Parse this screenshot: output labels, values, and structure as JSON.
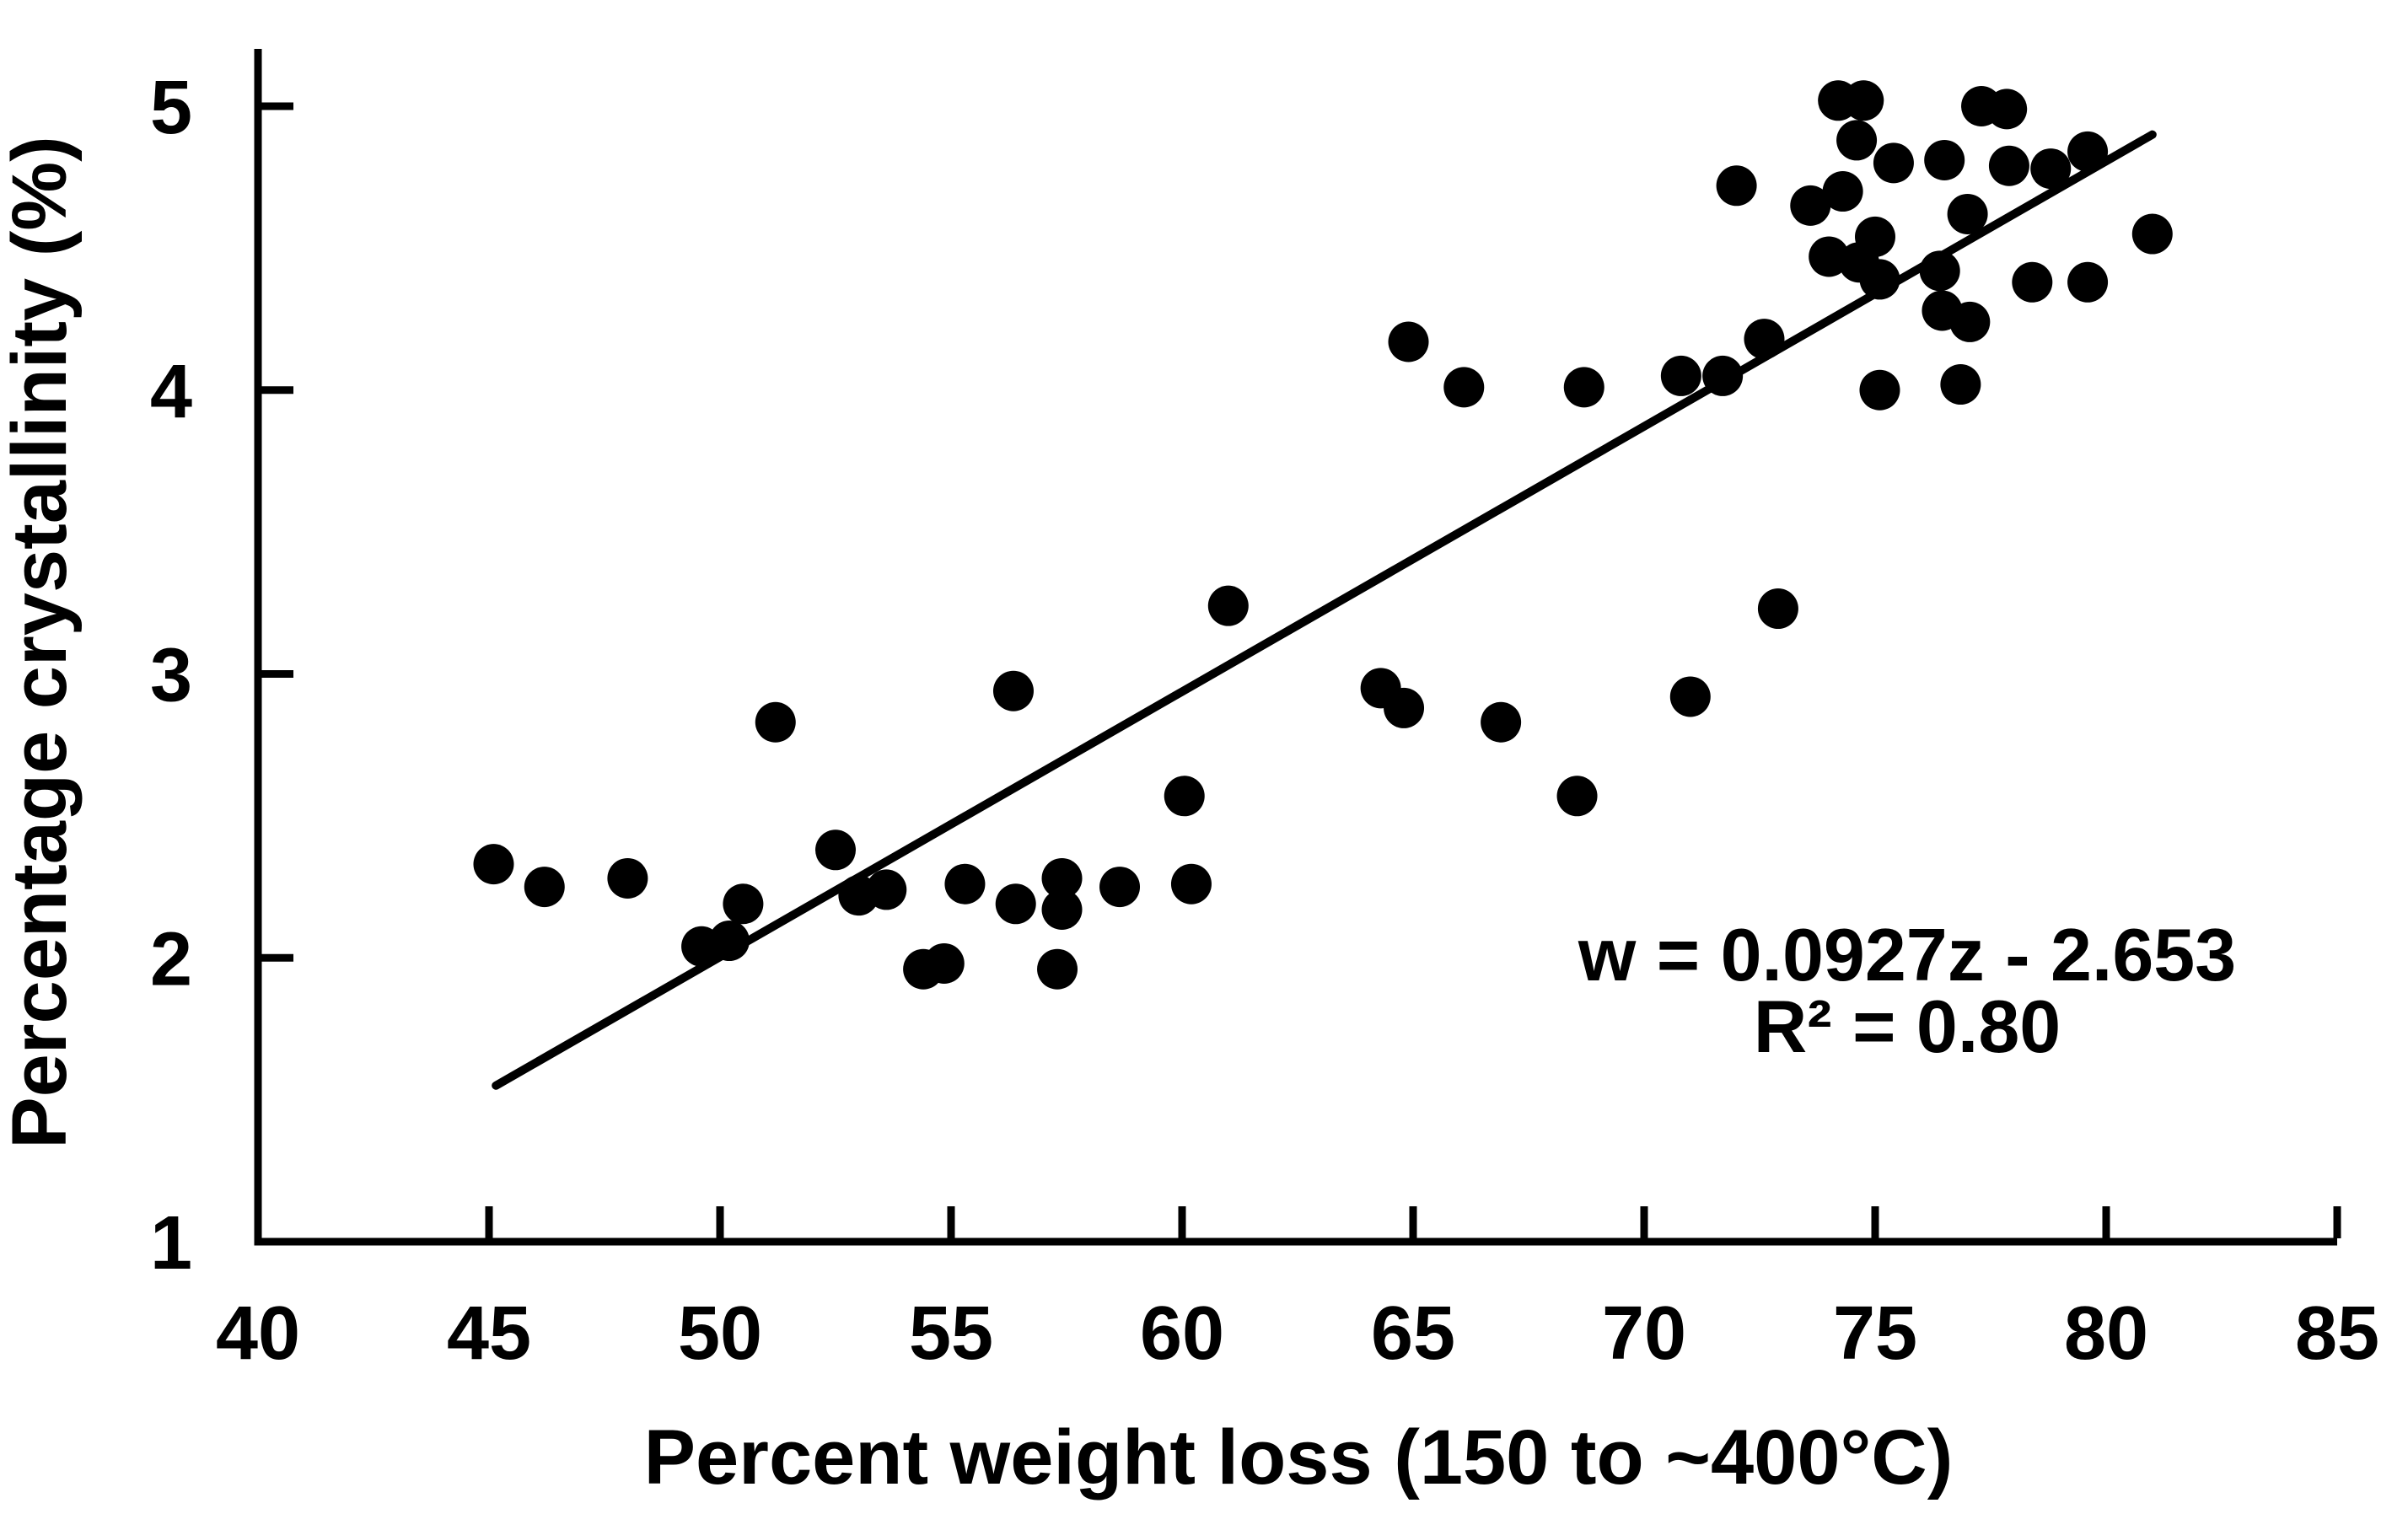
{
  "figure": {
    "background": "#ffffff",
    "foreground": "#000000"
  },
  "chart_data": {
    "type": "scatter",
    "title": "",
    "xlabel": "Percent weight loss (150 to ~400°C)",
    "ylabel": "Percentage crystallinity (%)",
    "xlim": [
      40,
      85
    ],
    "ylim": [
      1,
      5.2
    ],
    "grid": false,
    "legend": false,
    "marker_color": "#000000",
    "x_tick_labels": [
      "40",
      "45",
      "50",
      "55",
      "60",
      "65",
      "70",
      "75",
      "80",
      "85"
    ],
    "x_tick_values": [
      40,
      45,
      50,
      55,
      60,
      65,
      70,
      75,
      80,
      85
    ],
    "x_tick_marks": [
      45,
      50,
      55,
      60,
      65,
      70,
      75,
      80,
      85
    ],
    "y_tick_labels": [
      "1",
      "2",
      "3",
      "4",
      "5"
    ],
    "y_tick_values": [
      1,
      2,
      3,
      4,
      5
    ],
    "y_tick_marks": [
      2,
      3,
      4,
      5
    ],
    "points": [
      [
        45.1,
        2.33
      ],
      [
        46.2,
        2.25
      ],
      [
        48.0,
        2.28
      ],
      [
        49.6,
        2.04
      ],
      [
        50.2,
        2.06
      ],
      [
        50.5,
        2.19
      ],
      [
        51.2,
        2.83
      ],
      [
        52.5,
        2.38
      ],
      [
        53.0,
        2.22
      ],
      [
        53.6,
        2.24
      ],
      [
        54.4,
        1.96
      ],
      [
        54.85,
        1.98
      ],
      [
        55.3,
        2.26
      ],
      [
        56.35,
        2.94
      ],
      [
        56.4,
        2.19
      ],
      [
        57.3,
        1.96
      ],
      [
        57.4,
        2.28
      ],
      [
        57.4,
        2.17
      ],
      [
        58.65,
        2.25
      ],
      [
        60.05,
        2.57
      ],
      [
        60.2,
        2.26
      ],
      [
        61.0,
        3.24
      ],
      [
        64.3,
        2.95
      ],
      [
        64.8,
        2.88
      ],
      [
        64.9,
        4.17
      ],
      [
        66.1,
        4.01
      ],
      [
        66.9,
        2.83
      ],
      [
        68.55,
        2.57
      ],
      [
        68.7,
        4.01
      ],
      [
        70.8,
        4.05
      ],
      [
        71.0,
        2.92
      ],
      [
        71.7,
        4.05
      ],
      [
        72.0,
        4.72
      ],
      [
        72.6,
        4.18
      ],
      [
        72.9,
        3.23
      ],
      [
        73.6,
        4.65
      ],
      [
        74.0,
        4.47
      ],
      [
        74.2,
        5.02
      ],
      [
        74.3,
        4.7
      ],
      [
        74.6,
        4.88
      ],
      [
        74.65,
        4.45
      ],
      [
        74.75,
        5.02
      ],
      [
        75.0,
        4.54
      ],
      [
        75.1,
        4.39
      ],
      [
        75.1,
        4.0
      ],
      [
        75.4,
        4.8
      ],
      [
        76.4,
        4.42
      ],
      [
        76.45,
        4.28
      ],
      [
        76.5,
        4.81
      ],
      [
        76.85,
        4.02
      ],
      [
        77.0,
        4.62
      ],
      [
        77.05,
        4.24
      ],
      [
        77.3,
        5.0
      ],
      [
        77.85,
        4.99
      ],
      [
        77.9,
        4.79
      ],
      [
        78.4,
        4.38
      ],
      [
        78.8,
        4.78
      ],
      [
        79.6,
        4.84
      ],
      [
        79.6,
        4.38
      ],
      [
        81.0,
        4.55
      ]
    ],
    "trendline": {
      "x1": 45.15,
      "y1": 1.55,
      "x2": 81.0,
      "y2": 4.9
    },
    "annotation": {
      "line1": "w = 0.0927z - 2.653",
      "line2": "R² = 0.80"
    }
  }
}
